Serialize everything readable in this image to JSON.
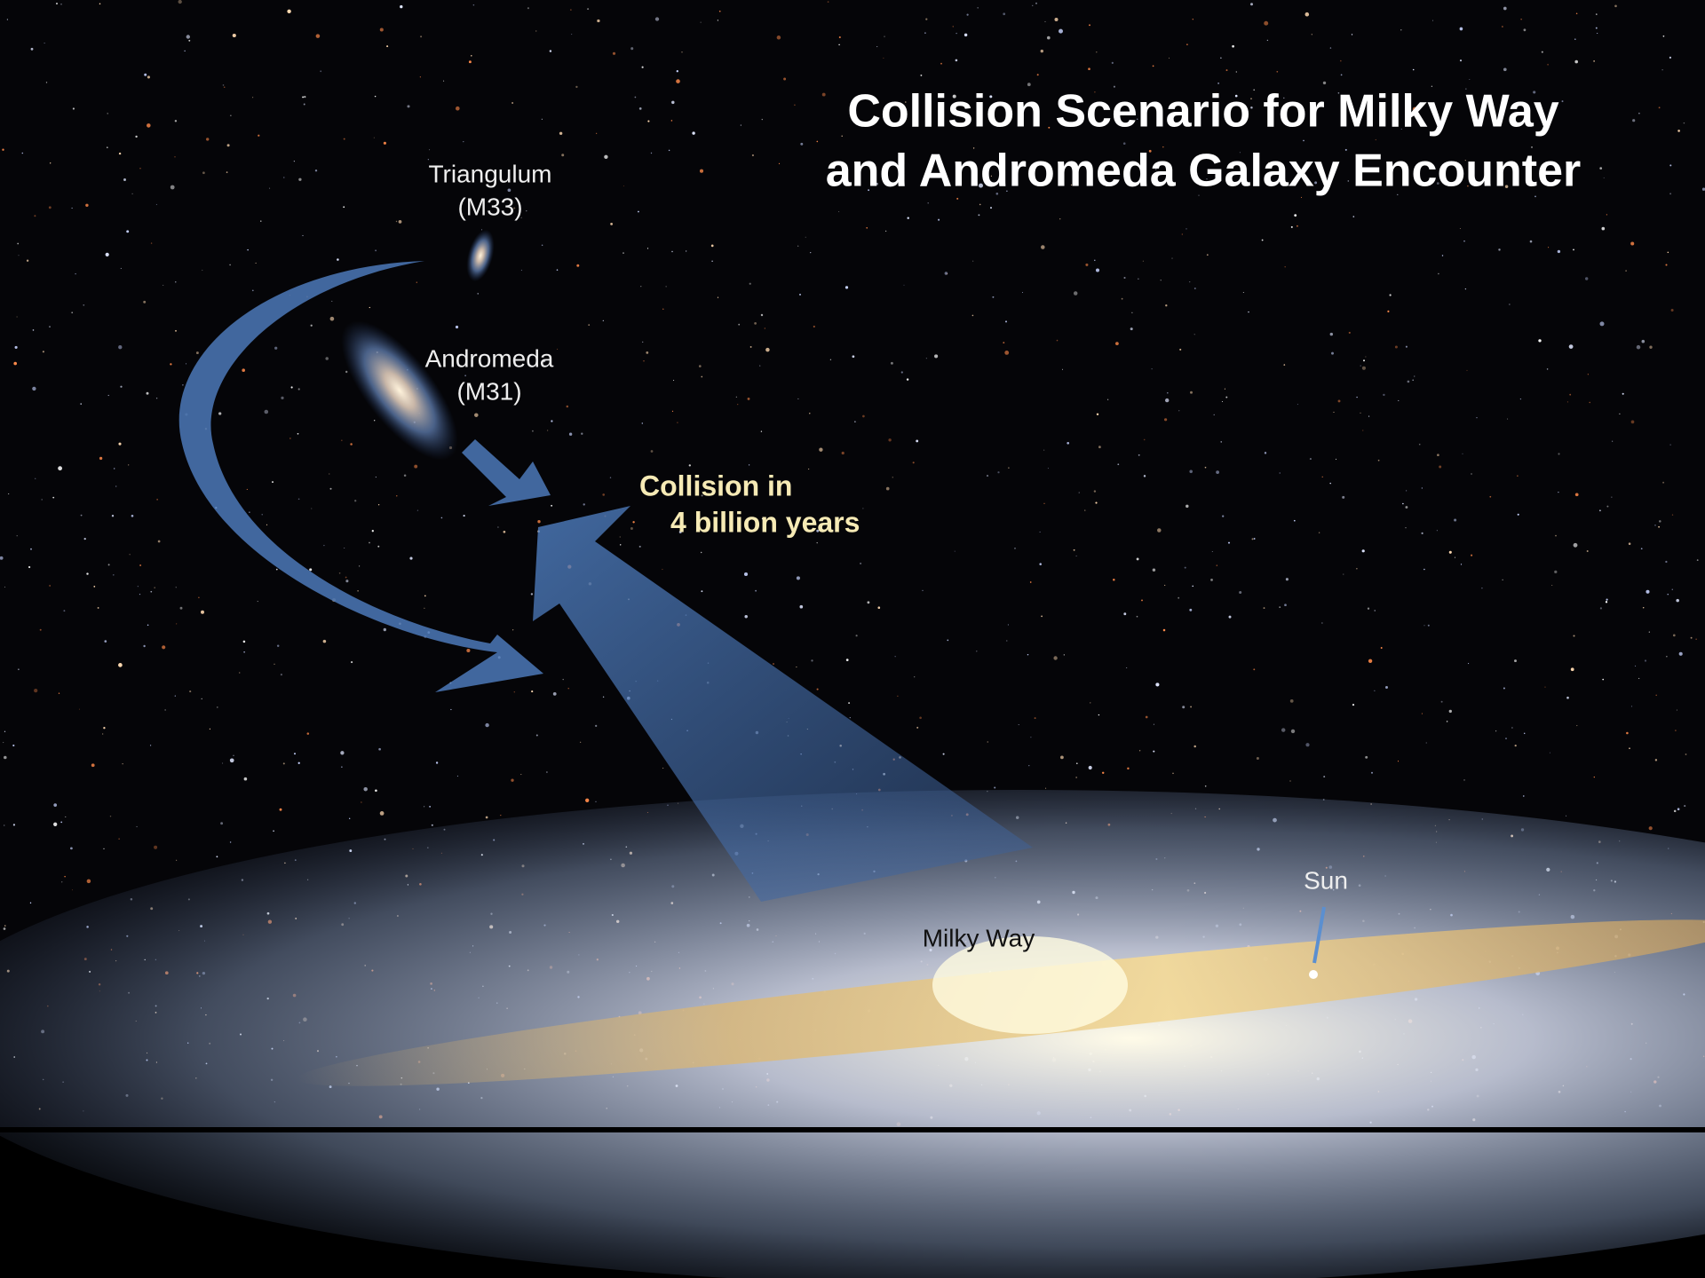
{
  "title": {
    "lines": [
      "Collision Scenario for Milky Way",
      "and Andromeda Galaxy Encounter"
    ]
  },
  "labels": [
    {
      "lines": [
        "Triangulum",
        "(M33)"
      ]
    },
    {
      "lines": [
        "Andromeda",
        "(M31)"
      ]
    },
    {
      "lines": [
        "Collision in",
        "4 billion years"
      ]
    },
    {
      "lines": [
        "Milky Way"
      ]
    },
    {
      "lines": [
        "Sun"
      ]
    }
  ]
}
